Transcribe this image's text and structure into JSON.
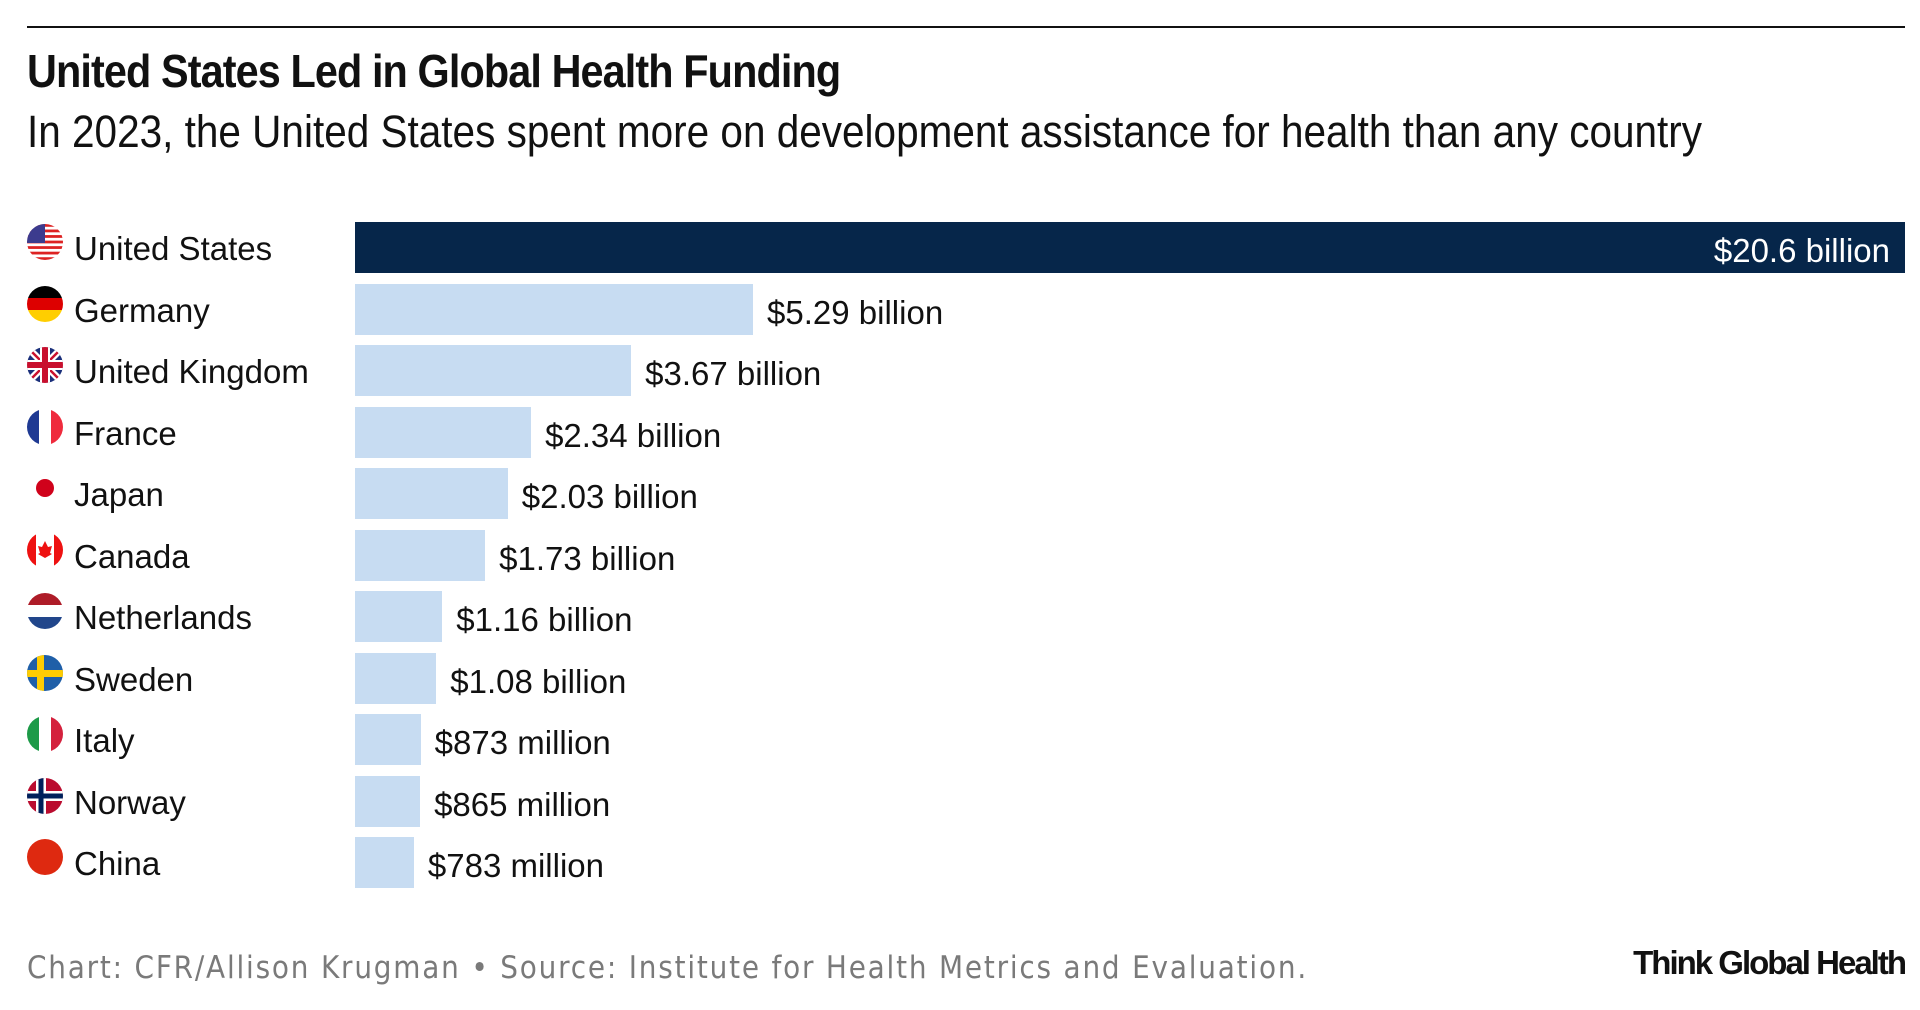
{
  "chart_data": {
    "type": "bar",
    "orientation": "horizontal",
    "title": "United States Led in Global Health Funding",
    "subtitle": "In 2023, the United States spent more on development assistance for health than any country",
    "categories": [
      "United States",
      "Germany",
      "United Kingdom",
      "France",
      "Japan",
      "Canada",
      "Netherlands",
      "Sweden",
      "Italy",
      "Norway",
      "China"
    ],
    "values": [
      20.6,
      5.29,
      3.67,
      2.34,
      2.03,
      1.73,
      1.16,
      1.08,
      0.873,
      0.865,
      0.783
    ],
    "unit": "billion USD",
    "labels": [
      "$20.6 billion",
      "$5.29 billion",
      "$3.67 billion",
      "$2.34 billion",
      "$2.03 billion",
      "$1.73 billion",
      "$1.16 billion",
      "$1.08 billion",
      "$873 million",
      "$865 million",
      "$783 million"
    ],
    "flags": [
      "us-flag",
      "germany-flag",
      "uk-flag",
      "france-flag",
      "japan-flag",
      "canada-flag",
      "netherlands-flag",
      "sweden-flag",
      "italy-flag",
      "norway-flag",
      "china-flag"
    ],
    "xlim": [
      0,
      20.6
    ],
    "grid": false,
    "colors": {
      "highlight": "#06264a",
      "default": "#c7dcf2"
    }
  },
  "footer": {
    "credit": "Chart: CFR/Allison Krugman • Source: Institute for Health Metrics and Evaluation.",
    "logo": "Think Global Health"
  }
}
